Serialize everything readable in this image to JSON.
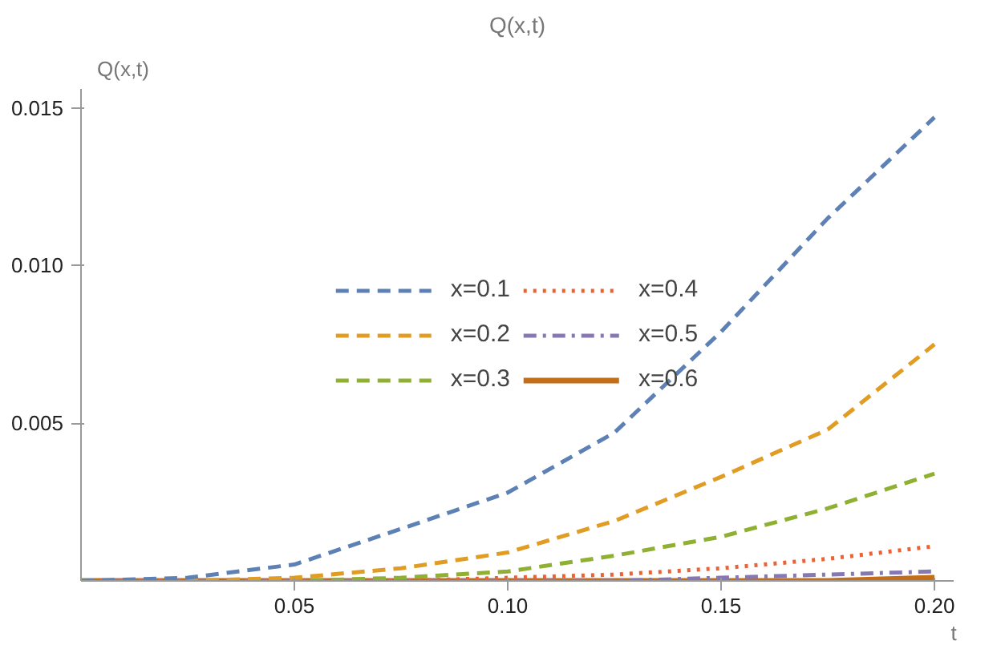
{
  "chart_data": {
    "type": "line",
    "title": "Q(x,t)",
    "xlabel": "t",
    "ylabel": "Q(x,t)",
    "x": [
      0,
      0.025,
      0.05,
      0.075,
      0.1,
      0.125,
      0.15,
      0.175,
      0.2
    ],
    "series": [
      {
        "name": "x=0.1",
        "color": "#5e81b5",
        "line_style": "dashed",
        "values": [
          0,
          0.0001,
          0.00052,
          0.00165,
          0.0028,
          0.0047,
          0.0079,
          0.0115,
          0.0147
        ]
      },
      {
        "name": "x=0.2",
        "color": "#e19c24",
        "line_style": "dashed",
        "values": [
          0,
          0,
          0.0001,
          0.0004,
          0.0009,
          0.0019,
          0.0033,
          0.0048,
          0.0075
        ]
      },
      {
        "name": "x=0.3",
        "color": "#8fb032",
        "line_style": "dashed",
        "values": [
          0,
          0,
          0,
          0.0001,
          0.0003,
          0.0008,
          0.0014,
          0.0023,
          0.0034
        ]
      },
      {
        "name": "x=0.4",
        "color": "#eb6235",
        "line_style": "dotted",
        "values": [
          0,
          0,
          0,
          0,
          0.0001,
          0.0002,
          0.0004,
          0.0007,
          0.0011
        ]
      },
      {
        "name": "x=0.5",
        "color": "#8778b3",
        "line_style": "dashdot",
        "values": [
          0,
          0,
          0,
          0,
          0,
          0,
          0.0001,
          0.0002,
          0.0003
        ]
      },
      {
        "name": "x=0.6",
        "color": "#c56e1a",
        "line_style": "solid",
        "values": [
          0,
          0,
          0,
          0,
          0,
          0,
          0,
          0,
          0.0001
        ]
      }
    ],
    "xlim": [
      0,
      0.2045
    ],
    "ylim": [
      0,
      0.0156
    ],
    "xticks": [
      0.05,
      {
        "value": 0.1,
        "label": "0.10"
      },
      0.15,
      {
        "value": 0.2,
        "label": "0.20"
      }
    ],
    "yticks": [
      0.005,
      {
        "value": 0.01,
        "label": "0.010"
      },
      0.015
    ],
    "grid": false,
    "legend": "center",
    "marker": "none"
  }
}
